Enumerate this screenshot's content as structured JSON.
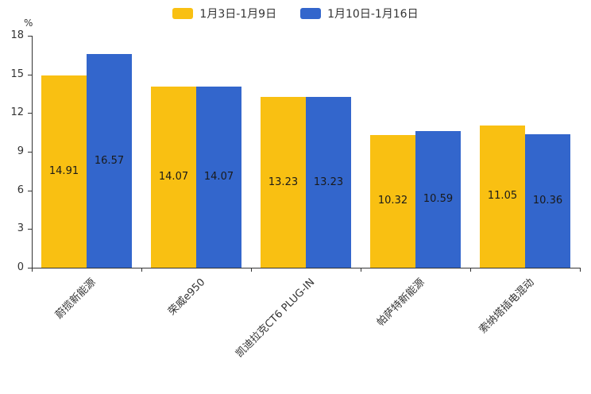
{
  "chart_data": {
    "type": "bar",
    "title": "",
    "categories": [
      "蔚揽新能源",
      "荣威e950",
      "凯迪拉克CT6 PLUG-IN",
      "帕萨特新能源",
      "索纳塔插电混动"
    ],
    "series": [
      {
        "name": "1月3日-1月9日",
        "color": "#F9C012",
        "values": [
          14.91,
          14.07,
          13.23,
          10.32,
          11.05
        ]
      },
      {
        "name": "1月10日-1月16日",
        "color": "#3366CC",
        "values": [
          16.57,
          14.07,
          13.23,
          10.59,
          10.36
        ]
      }
    ],
    "xlabel": "",
    "ylabel": "%",
    "ylim": [
      0,
      18
    ],
    "yticks": [
      0,
      3,
      6,
      9,
      12,
      15,
      18
    ],
    "legend_position": "top",
    "grid": false
  }
}
